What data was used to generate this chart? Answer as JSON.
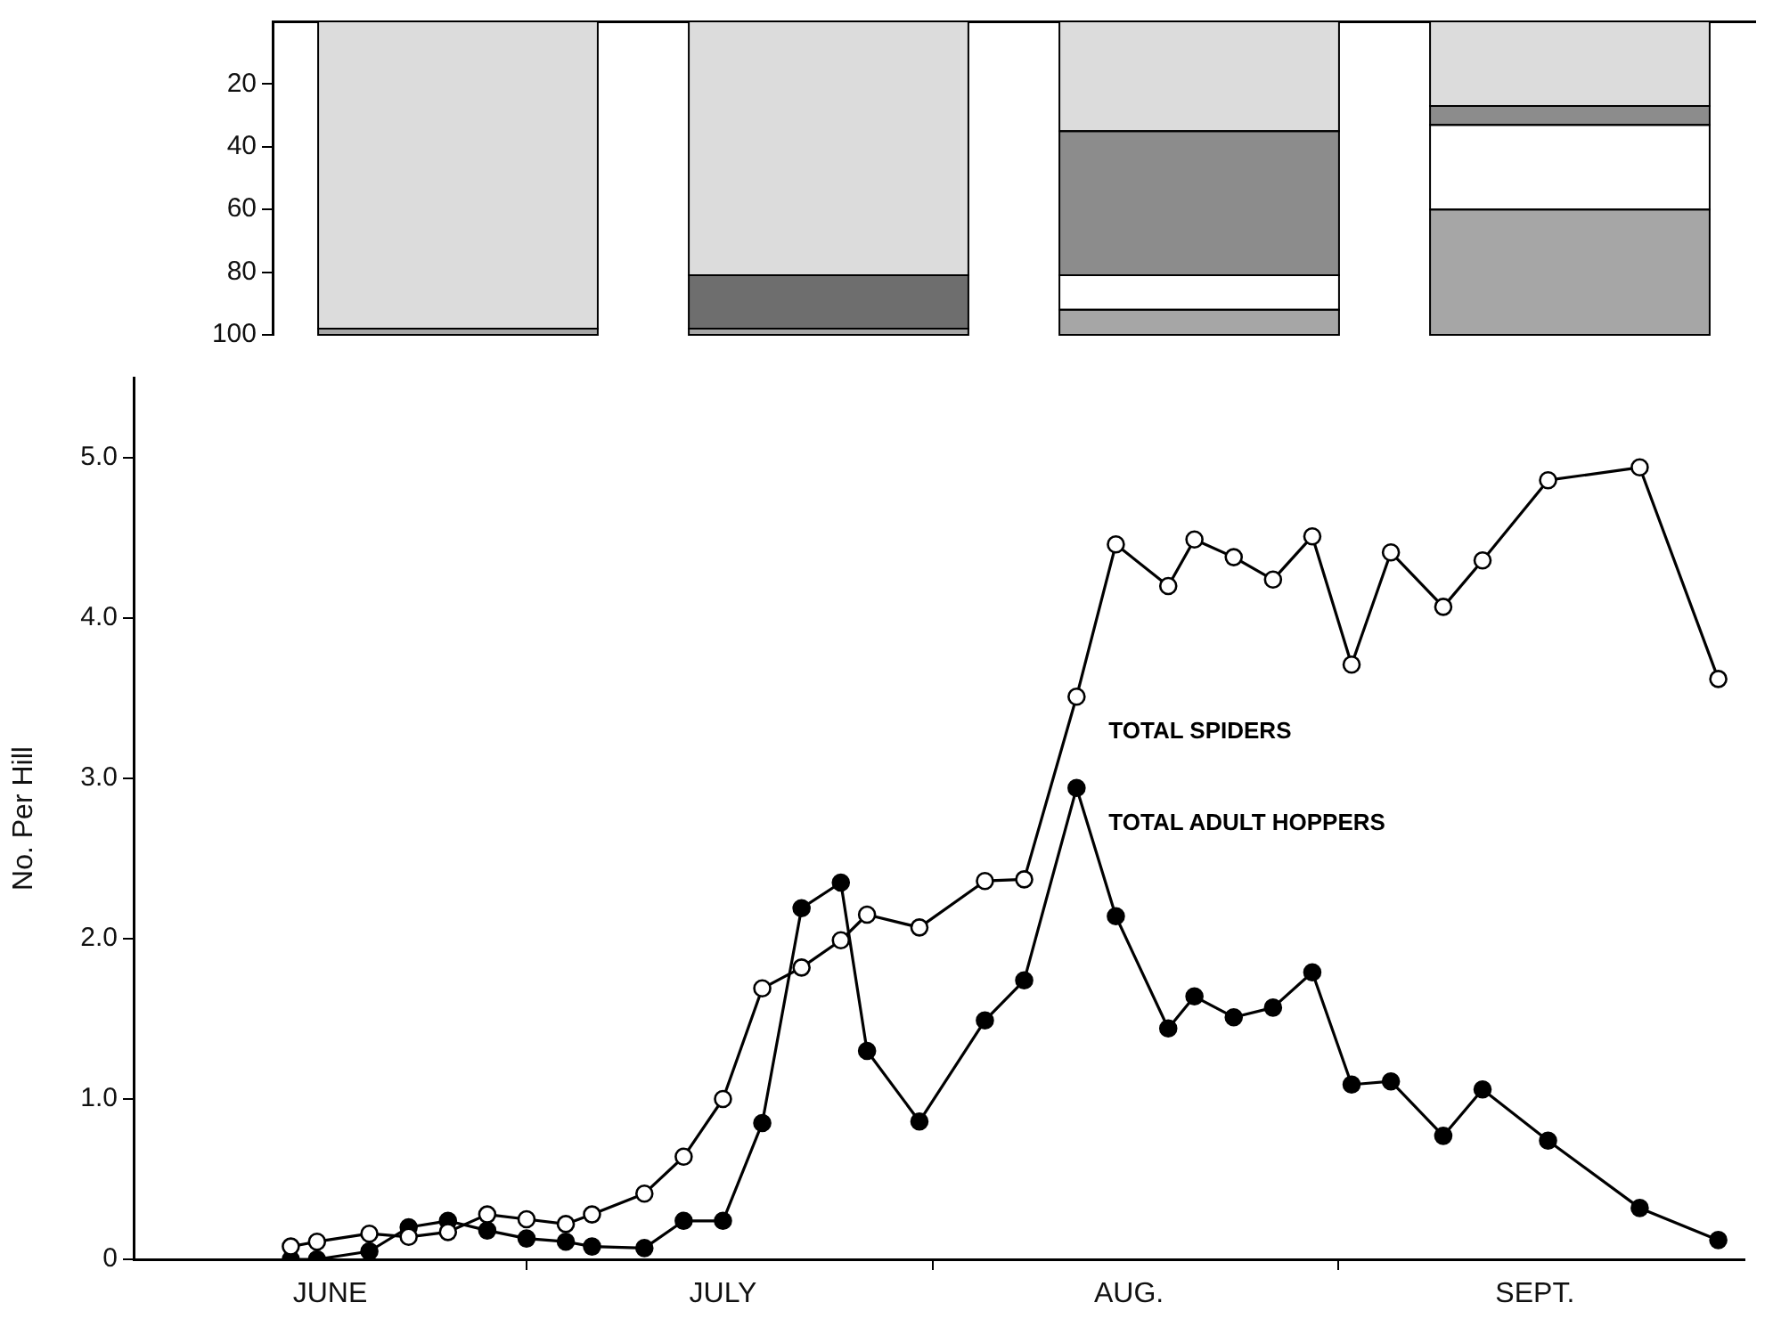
{
  "chart_data": [
    {
      "type": "bar",
      "stacked": true,
      "categories": [
        null,
        null,
        null,
        null
      ],
      "ylim": [
        100,
        0
      ],
      "yticks": [
        20,
        40,
        60,
        80,
        100
      ],
      "tick_labels": "y",
      "series": [
        {
          "color": "#dcdcdc",
          "values": [
            98,
            81,
            35,
            27
          ]
        },
        {
          "color": "#6e6e6e",
          "values": [
            null,
            17,
            null,
            null
          ]
        },
        {
          "color": "#8c8c8c",
          "values": [
            null,
            null,
            46,
            6
          ]
        },
        {
          "color": "#ffffff",
          "values": [
            null,
            null,
            11,
            27
          ]
        },
        {
          "color": "#a6a6a6",
          "values": [
            2,
            2,
            8,
            40
          ]
        }
      ]
    },
    {
      "type": "line",
      "ylabel": "No. Per Hill",
      "marker": "circle",
      "xlim": [
        "--06-01",
        "--10-02"
      ],
      "xticks": [
        {
          "value": "--06-16",
          "label": "JUNE"
        },
        {
          "value": "--07-01",
          "label": null
        },
        {
          "value": "--07-16",
          "label": "JULY"
        },
        {
          "value": "--08-01",
          "label": null
        },
        {
          "value": "--08-16",
          "label": "AUG."
        },
        {
          "value": "--09-01",
          "label": null
        },
        {
          "value": "--09-16",
          "label": "SEPT."
        }
      ],
      "ylim": [
        0,
        5.5
      ],
      "yticks": [
        0,
        {
          "value": 1,
          "label": "1.0"
        },
        {
          "value": 2,
          "label": "2.0"
        },
        {
          "value": 3,
          "label": "3.0"
        },
        {
          "value": 4,
          "label": "4.0"
        },
        {
          "value": 5,
          "label": "5.0"
        }
      ],
      "series": [
        {
          "name": "TOTAL SPIDERS",
          "color": "#ffffff",
          "x": [
            "--06-13",
            "--06-15",
            "--06-19",
            "--06-22",
            "--06-25",
            "--06-28",
            "--07-01",
            "--07-04",
            "--07-06",
            "--07-10",
            "--07-13",
            "--07-16",
            "--07-19",
            "--07-22",
            "--07-25",
            "--07-27",
            "--07-31",
            "--08-05",
            "--08-08",
            "--08-12",
            "--08-15",
            "--08-19",
            "--08-21",
            "--08-24",
            "--08-27",
            "--08-30",
            "--09-02",
            "--09-05",
            "--09-09",
            "--09-12",
            "--09-17",
            "--09-24",
            "--09-30"
          ],
          "values": [
            0.08,
            0.11,
            0.16,
            0.14,
            0.17,
            0.28,
            0.25,
            0.22,
            0.28,
            0.41,
            0.64,
            1.0,
            1.69,
            1.82,
            1.99,
            2.15,
            2.07,
            2.36,
            2.37,
            3.51,
            4.46,
            4.2,
            4.49,
            4.38,
            4.24,
            4.51,
            3.71,
            4.41,
            4.07,
            4.36,
            4.86,
            4.94,
            3.62
          ]
        },
        {
          "name": "TOTAL ADULT HOPPERS",
          "color": "#000000",
          "x": [
            "--06-13",
            "--06-15",
            "--06-19",
            "--06-22",
            "--06-25",
            "--06-28",
            "--07-01",
            "--07-04",
            "--07-06",
            "--07-10",
            "--07-13",
            "--07-16",
            "--07-19",
            "--07-22",
            "--07-25",
            "--07-27",
            "--07-31",
            "--08-05",
            "--08-08",
            "--08-12",
            "--08-15",
            "--08-19",
            "--08-21",
            "--08-24",
            "--08-27",
            "--08-30",
            "--09-02",
            "--09-05",
            "--09-09",
            "--09-12",
            "--09-17",
            "--09-24",
            "--09-30"
          ],
          "values": [
            0,
            0,
            0.05,
            0.2,
            0.24,
            0.18,
            0.13,
            0.11,
            0.08,
            0.07,
            0.24,
            0.24,
            0.85,
            2.19,
            2.35,
            1.3,
            0.86,
            1.49,
            1.74,
            2.94,
            2.14,
            1.44,
            1.64,
            1.51,
            1.57,
            1.79,
            1.09,
            1.11,
            0.77,
            1.06,
            0.74,
            0.32,
            0.12
          ]
        }
      ]
    }
  ]
}
